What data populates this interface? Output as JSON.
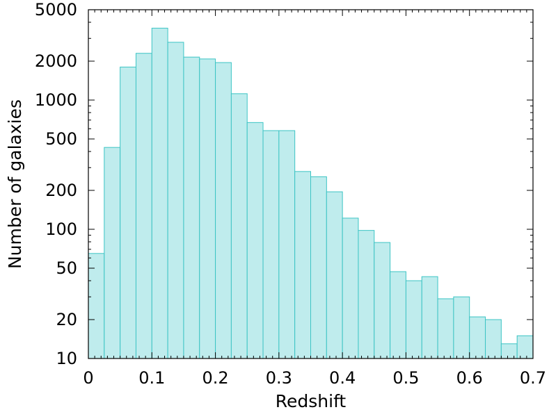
{
  "chart_data": {
    "type": "bar",
    "xlabel": "Redshift",
    "ylabel": "Number of galaxies",
    "xlim": [
      0,
      0.7
    ],
    "ylim": [
      10,
      5000
    ],
    "yscale": "log",
    "grid": false,
    "bar_color": "#bfeced",
    "bar_edge_color": "#3cc4c4",
    "bins": [
      {
        "x0": 0.0,
        "x1": 0.025,
        "value": 65
      },
      {
        "x0": 0.025,
        "x1": 0.05,
        "value": 430
      },
      {
        "x0": 0.05,
        "x1": 0.075,
        "value": 1800
      },
      {
        "x0": 0.075,
        "x1": 0.1,
        "value": 2300
      },
      {
        "x0": 0.1,
        "x1": 0.125,
        "value": 3600
      },
      {
        "x0": 0.125,
        "x1": 0.15,
        "value": 2800
      },
      {
        "x0": 0.15,
        "x1": 0.175,
        "value": 2150
      },
      {
        "x0": 0.175,
        "x1": 0.2,
        "value": 2080
      },
      {
        "x0": 0.2,
        "x1": 0.225,
        "value": 1950
      },
      {
        "x0": 0.225,
        "x1": 0.25,
        "value": 1120
      },
      {
        "x0": 0.25,
        "x1": 0.275,
        "value": 670
      },
      {
        "x0": 0.275,
        "x1": 0.3,
        "value": 580
      },
      {
        "x0": 0.3,
        "x1": 0.325,
        "value": 580
      },
      {
        "x0": 0.325,
        "x1": 0.35,
        "value": 280
      },
      {
        "x0": 0.35,
        "x1": 0.375,
        "value": 255
      },
      {
        "x0": 0.375,
        "x1": 0.4,
        "value": 195
      },
      {
        "x0": 0.4,
        "x1": 0.425,
        "value": 122
      },
      {
        "x0": 0.425,
        "x1": 0.45,
        "value": 98
      },
      {
        "x0": 0.45,
        "x1": 0.475,
        "value": 79
      },
      {
        "x0": 0.475,
        "x1": 0.5,
        "value": 47
      },
      {
        "x0": 0.5,
        "x1": 0.525,
        "value": 40
      },
      {
        "x0": 0.525,
        "x1": 0.55,
        "value": 43
      },
      {
        "x0": 0.55,
        "x1": 0.575,
        "value": 29
      },
      {
        "x0": 0.575,
        "x1": 0.6,
        "value": 30
      },
      {
        "x0": 0.6,
        "x1": 0.625,
        "value": 21
      },
      {
        "x0": 0.625,
        "x1": 0.65,
        "value": 20
      },
      {
        "x0": 0.65,
        "x1": 0.675,
        "value": 13
      },
      {
        "x0": 0.675,
        "x1": 0.7,
        "value": 15
      }
    ],
    "x_ticks": [
      {
        "value": 0,
        "label": "0"
      },
      {
        "value": 0.1,
        "label": "0.1"
      },
      {
        "value": 0.2,
        "label": "0.2"
      },
      {
        "value": 0.3,
        "label": "0.3"
      },
      {
        "value": 0.4,
        "label": "0.4"
      },
      {
        "value": 0.5,
        "label": "0.5"
      },
      {
        "value": 0.6,
        "label": "0.6"
      },
      {
        "value": 0.7,
        "label": "0.7"
      }
    ],
    "y_ticks": [
      {
        "value": 10,
        "label": "10"
      },
      {
        "value": 20,
        "label": "20"
      },
      {
        "value": 50,
        "label": "50"
      },
      {
        "value": 100,
        "label": "100"
      },
      {
        "value": 200,
        "label": "200"
      },
      {
        "value": 500,
        "label": "500"
      },
      {
        "value": 1000,
        "label": "1000"
      },
      {
        "value": 2000,
        "label": "2000"
      },
      {
        "value": 5000,
        "label": "5000"
      }
    ]
  }
}
